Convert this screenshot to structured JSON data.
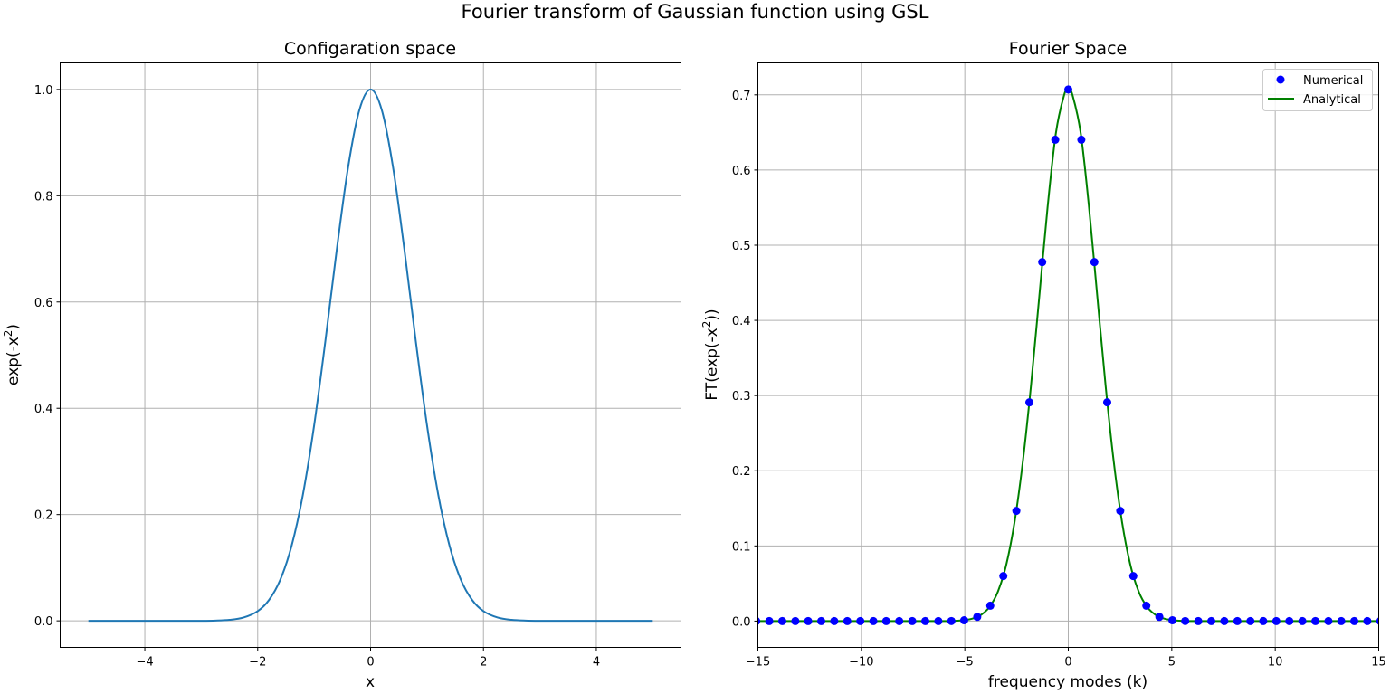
{
  "figure": {
    "title": "Fourier transform of Gaussian function using GSL"
  },
  "chart_data": [
    {
      "type": "line",
      "title": "Configaration space",
      "xlabel": "x",
      "ylabel_base": "exp(-x",
      "ylabel_sup": "2",
      "ylabel_end": ")",
      "xlim": [
        -5.5,
        5.5
      ],
      "ylim": [
        -0.05,
        1.05
      ],
      "xticks": [
        -4,
        -2,
        0,
        2,
        4
      ],
      "yticks": [
        0.0,
        0.2,
        0.4,
        0.6,
        0.8,
        1.0
      ],
      "xtick_labels": [
        "−4",
        "−2",
        "0",
        "2",
        "4"
      ],
      "ytick_labels": [
        "0.0",
        "0.2",
        "0.4",
        "0.6",
        "0.8",
        "1.0"
      ],
      "grid": true,
      "series": [
        {
          "color": "#1f77b4",
          "x": [
            -5,
            -4.5,
            -4,
            -3.5,
            -3,
            -2.75,
            -2.5,
            -2.25,
            -2,
            -1.8,
            -1.6,
            -1.4,
            -1.2,
            -1,
            -0.8,
            -0.6,
            -0.4,
            -0.2,
            0,
            0.2,
            0.4,
            0.6,
            0.8,
            1,
            1.2,
            1.4,
            1.6,
            1.8,
            2,
            2.25,
            2.5,
            2.75,
            3,
            3.5,
            4,
            4.5,
            5
          ],
          "y": [
            0,
            0,
            0,
            0,
            0.0001,
            0.0005,
            0.0019,
            0.0063,
            0.0183,
            0.0392,
            0.0773,
            0.1409,
            0.2369,
            0.3679,
            0.5273,
            0.6977,
            0.8521,
            0.9608,
            1,
            0.9608,
            0.8521,
            0.6977,
            0.5273,
            0.3679,
            0.2369,
            0.1409,
            0.0773,
            0.0392,
            0.0183,
            0.0063,
            0.0019,
            0.0005,
            0.0001,
            0,
            0,
            0,
            0
          ]
        }
      ]
    },
    {
      "type": "line+scatter",
      "title": "Fourier Space",
      "xlabel": "frequency modes (k)",
      "ylabel_base": "FT(exp(-x",
      "ylabel_sup": "2",
      "ylabel_end": "))",
      "xlim": [
        -15,
        15
      ],
      "ylim": [
        -0.035,
        0.7425
      ],
      "xticks": [
        -15,
        -10,
        -5,
        0,
        5,
        10,
        15
      ],
      "yticks": [
        0.0,
        0.1,
        0.2,
        0.3,
        0.4,
        0.5,
        0.6,
        0.7
      ],
      "xtick_labels": [
        "−15",
        "−10",
        "−5",
        "0",
        "5",
        "10",
        "15"
      ],
      "ytick_labels": [
        "0.0",
        "0.1",
        "0.2",
        "0.3",
        "0.4",
        "0.5",
        "0.6",
        "0.7"
      ],
      "grid": true,
      "legend_position": "top-right",
      "series": [
        {
          "name": "Numerical",
          "kind": "scatter",
          "color": "#0000ff",
          "x": [
            -15.08,
            -14.45,
            -13.82,
            -13.19,
            -12.57,
            -11.94,
            -11.31,
            -10.68,
            -10.05,
            -9.42,
            -8.8,
            -8.17,
            -7.54,
            -6.91,
            -6.28,
            -5.65,
            -5.03,
            -4.4,
            -3.77,
            -3.14,
            -2.51,
            -1.88,
            -1.26,
            -0.63,
            0.0,
            0.63,
            1.26,
            1.88,
            2.51,
            3.14,
            3.77,
            4.4,
            5.03,
            5.65,
            6.28,
            6.91,
            7.54,
            8.17,
            8.8,
            9.42,
            10.05,
            10.68,
            11.31,
            11.94,
            12.57,
            13.19,
            13.82,
            14.45,
            15.08
          ],
          "y": [
            0,
            0,
            0,
            0,
            0,
            0,
            0,
            0,
            0,
            0,
            0,
            0,
            0,
            0,
            0,
            0.0001,
            0.0011,
            0.0056,
            0.0205,
            0.0599,
            0.1466,
            0.291,
            0.4775,
            0.6403,
            0.7071,
            0.6403,
            0.4775,
            0.291,
            0.1466,
            0.0599,
            0.0205,
            0.0056,
            0.0011,
            0.0001,
            0,
            0,
            0,
            0,
            0,
            0,
            0,
            0,
            0,
            0,
            0,
            0,
            0,
            0,
            0
          ]
        },
        {
          "name": "Analytical",
          "kind": "line",
          "color": "#008000",
          "x": [
            -15,
            -10,
            -7,
            -6,
            -5.5,
            -5,
            -4.6,
            -4.2,
            -3.8,
            -3.4,
            -3,
            -2.6,
            -2.2,
            -1.8,
            -1.4,
            -1,
            -0.6,
            -0.2,
            0,
            0.2,
            0.6,
            1,
            1.4,
            1.8,
            2.2,
            2.6,
            3,
            3.4,
            3.8,
            4.2,
            4.6,
            5,
            5.5,
            6,
            7,
            10,
            15
          ],
          "y": [
            0,
            0,
            0,
            0,
            0.0003,
            0.0014,
            0.0036,
            0.0086,
            0.0191,
            0.0393,
            0.0747,
            0.1312,
            0.2112,
            0.3138,
            0.4322,
            0.5507,
            0.649,
            0.7,
            0.7071,
            0.7,
            0.649,
            0.5507,
            0.4322,
            0.3138,
            0.2112,
            0.1312,
            0.0747,
            0.0393,
            0.0191,
            0.0086,
            0.0036,
            0.0014,
            0.0003,
            0,
            0,
            0,
            0
          ]
        }
      ]
    }
  ]
}
